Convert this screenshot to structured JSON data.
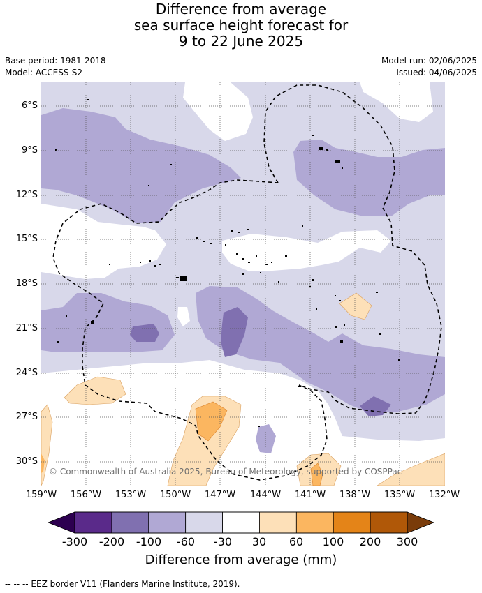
{
  "title_lines": [
    "Difference from average",
    "sea surface height forecast for",
    "9 to 22 June 2025"
  ],
  "meta": {
    "base_period": "Base period: 1981-2018",
    "model": "Model: ACCESS-S2",
    "model_run": "Model run: 02/06/2025",
    "issued": "Issued: 04/06/2025"
  },
  "map": {
    "lon_labels": [
      "159°W",
      "156°W",
      "153°W",
      "150°W",
      "147°W",
      "144°W",
      "141°W",
      "138°W",
      "135°W",
      "132°W"
    ],
    "lat_labels": [
      "6°S",
      "9°S",
      "12°S",
      "15°S",
      "18°S",
      "21°S",
      "24°S",
      "27°S",
      "30°S"
    ],
    "copyright": "© Commonwealth of Australia 2025, Bureau of Meteorology, supported by COSPPac"
  },
  "colorbar": {
    "ticks": [
      "-300",
      "-200",
      "-100",
      "-60",
      "-30",
      "30",
      "60",
      "100",
      "200",
      "300"
    ],
    "colors": [
      "#5a2a8a",
      "#8070b0",
      "#b0a8d4",
      "#d8d8ea",
      "#ffffff",
      "#fde0b8",
      "#fbb660",
      "#e48418",
      "#b05808"
    ],
    "under_color": "#2d0050",
    "over_color": "#7a3c0a",
    "title": "Difference from average (mm)"
  },
  "legend_text": "--  --  -- EEZ border V11 (Flanders Marine Institute, 2019)."
}
